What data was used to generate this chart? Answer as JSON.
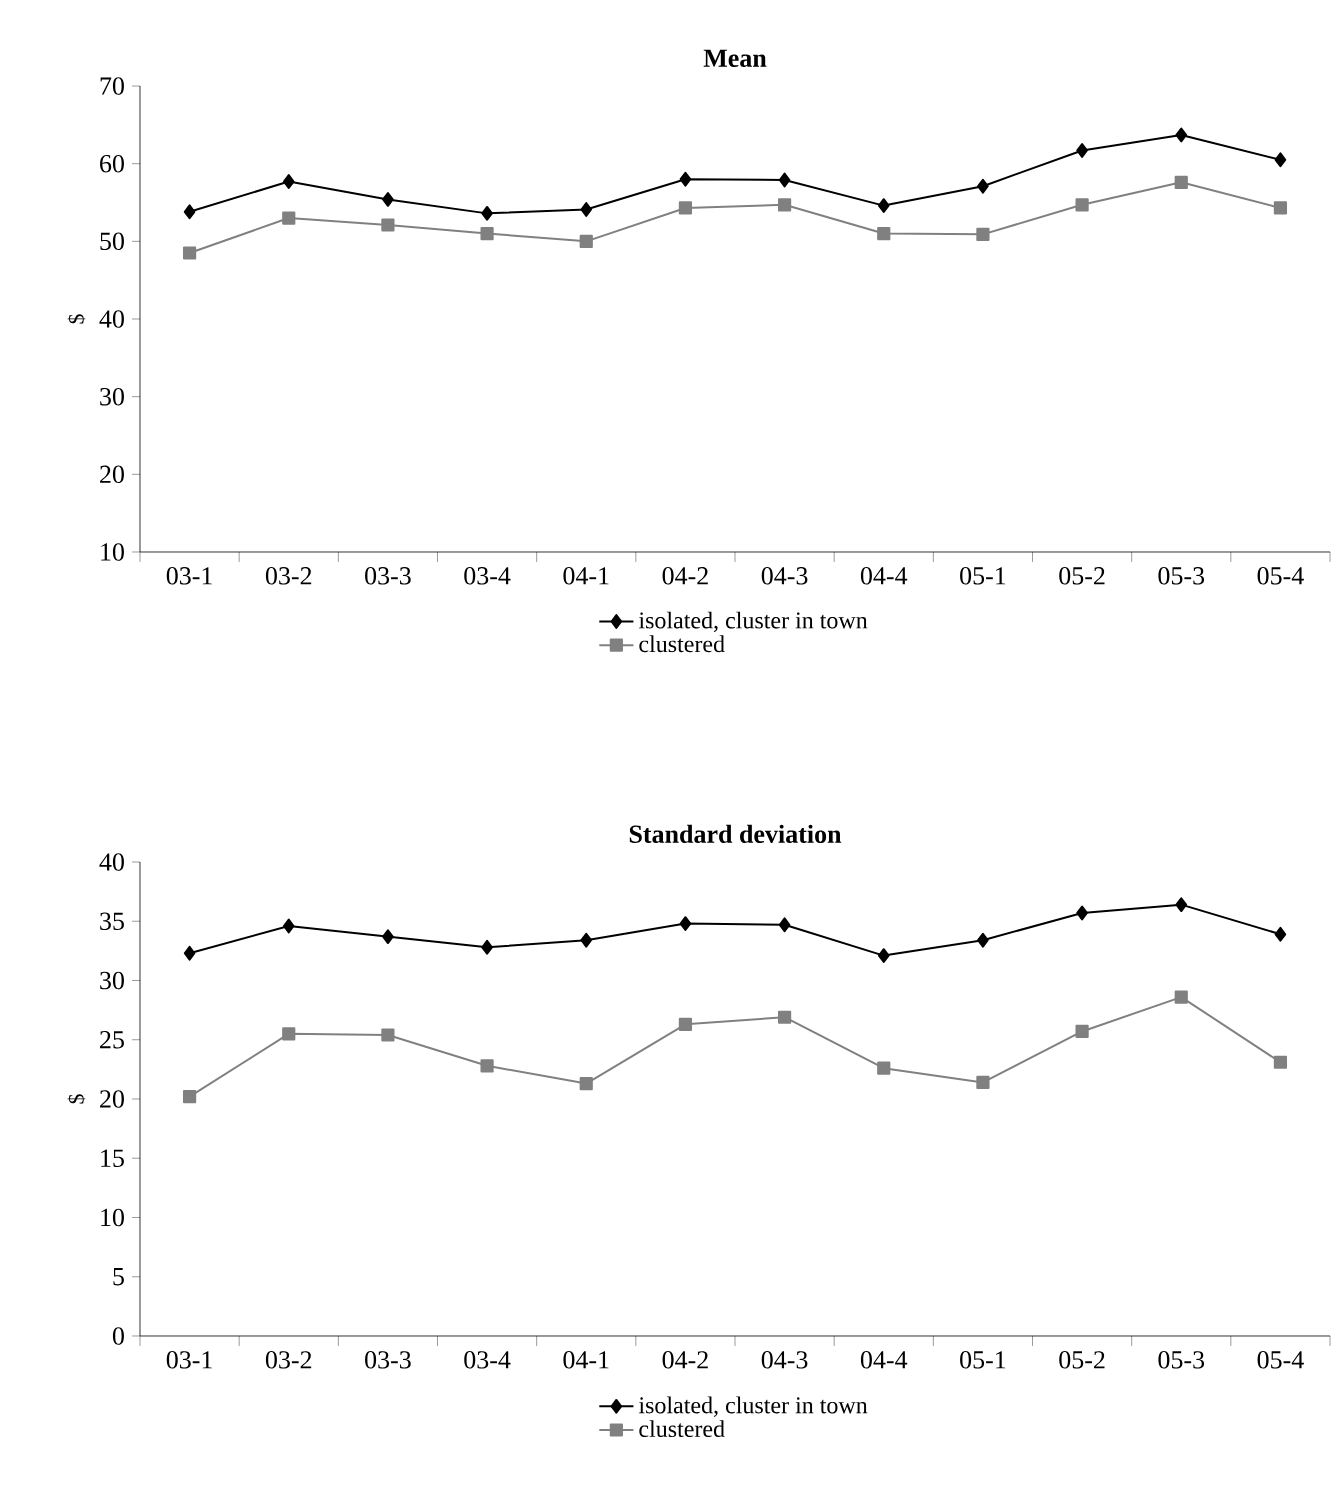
{
  "chart_data": [
    {
      "type": "line",
      "title": "Mean",
      "ylabel": "$",
      "categories": [
        "03-1",
        "03-2",
        "03-3",
        "03-4",
        "04-1",
        "04-2",
        "04-3",
        "04-4",
        "05-1",
        "05-2",
        "05-3",
        "05-4"
      ],
      "series": [
        {
          "name": "isolated, cluster in town",
          "color": "#000000",
          "marker": "diamond",
          "values": [
            53.8,
            57.7,
            55.4,
            53.6,
            54.1,
            58.0,
            57.9,
            54.6,
            57.1,
            61.7,
            63.7,
            60.5
          ]
        },
        {
          "name": "clustered",
          "color": "#808080",
          "marker": "square",
          "values": [
            48.5,
            53.0,
            52.1,
            51.0,
            50.0,
            54.3,
            54.7,
            51.0,
            50.9,
            54.7,
            57.6,
            54.3
          ]
        }
      ],
      "ylim": [
        10,
        70
      ],
      "yticks": [
        10,
        20,
        30,
        40,
        50,
        60,
        70
      ],
      "legend": "bottom"
    },
    {
      "type": "line",
      "title": "Standard deviation",
      "ylabel": "$",
      "categories": [
        "03-1",
        "03-2",
        "03-3",
        "03-4",
        "04-1",
        "04-2",
        "04-3",
        "04-4",
        "05-1",
        "05-2",
        "05-3",
        "05-4"
      ],
      "series": [
        {
          "name": "isolated, cluster in town",
          "color": "#000000",
          "marker": "diamond",
          "values": [
            32.3,
            34.6,
            33.7,
            32.8,
            33.4,
            34.8,
            34.7,
            32.1,
            33.4,
            35.7,
            36.4,
            33.9
          ]
        },
        {
          "name": "clustered",
          "color": "#808080",
          "marker": "square",
          "values": [
            20.2,
            25.5,
            25.4,
            22.8,
            21.3,
            26.3,
            26.9,
            22.6,
            21.4,
            25.7,
            28.6,
            23.1
          ]
        }
      ],
      "ylim": [
        0,
        40
      ],
      "yticks": [
        0,
        5,
        10,
        15,
        20,
        25,
        30,
        35,
        40
      ],
      "legend": "bottom"
    }
  ]
}
